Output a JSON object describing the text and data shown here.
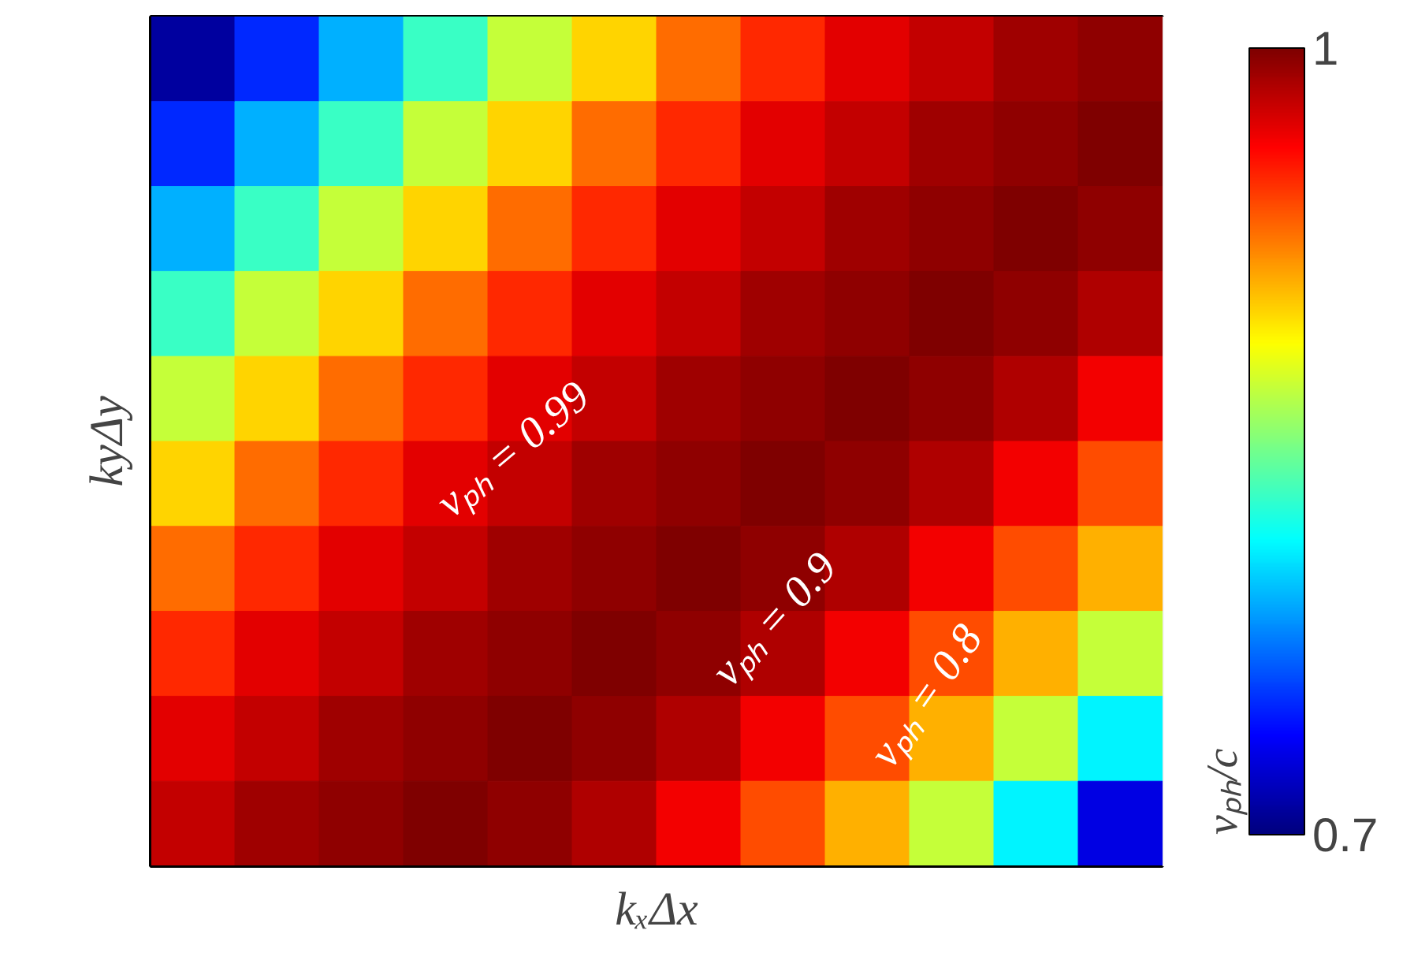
{
  "chart_data": {
    "type": "heatmap",
    "xlabel": "kₓΔx",
    "ylabel": "kyΔy",
    "clabel": "vₚₕ/c",
    "categories": [
      null,
      null,
      null,
      null,
      null,
      null,
      null,
      null,
      null,
      null,
      null,
      null
    ],
    "y_categories": [
      null,
      null,
      null,
      null,
      null,
      null,
      null,
      null,
      null,
      null
    ],
    "cells": [
      [
        0.71,
        0.75,
        0.79,
        0.83,
        0.87,
        0.9,
        0.93,
        0.95,
        0.97,
        0.98,
        0.99,
        0.995
      ],
      [
        0.75,
        0.79,
        0.83,
        0.87,
        0.9,
        0.93,
        0.95,
        0.97,
        0.98,
        0.99,
        0.995,
        1.0
      ],
      [
        0.79,
        0.83,
        0.87,
        0.9,
        0.93,
        0.95,
        0.97,
        0.98,
        0.99,
        0.995,
        1.0,
        0.995
      ],
      [
        0.83,
        0.87,
        0.9,
        0.93,
        0.95,
        0.97,
        0.98,
        0.99,
        0.995,
        1.0,
        0.995,
        0.985
      ],
      [
        0.87,
        0.9,
        0.93,
        0.95,
        0.97,
        0.98,
        0.99,
        0.995,
        1.0,
        0.995,
        0.985,
        0.965
      ],
      [
        0.9,
        0.93,
        0.95,
        0.97,
        0.98,
        0.99,
        0.995,
        1.0,
        0.995,
        0.985,
        0.965,
        0.94
      ],
      [
        0.93,
        0.95,
        0.97,
        0.98,
        0.99,
        0.995,
        1.0,
        0.995,
        0.985,
        0.965,
        0.94,
        0.91
      ],
      [
        0.95,
        0.97,
        0.98,
        0.99,
        0.995,
        1.0,
        0.995,
        0.985,
        0.965,
        0.94,
        0.91,
        0.87
      ],
      [
        0.97,
        0.98,
        0.99,
        0.995,
        1.0,
        0.995,
        0.985,
        0.965,
        0.94,
        0.91,
        0.87,
        0.81
      ],
      [
        0.98,
        0.99,
        0.995,
        1.0,
        0.995,
        0.985,
        0.965,
        0.94,
        0.91,
        0.87,
        0.81,
        0.73
      ]
    ],
    "clim": [
      0.7,
      1
    ],
    "cticks": [
      0.7,
      1
    ],
    "annotations": [
      "vₚₕ = 0.99",
      "vₚₕ = 0.9",
      "vₚₕ = 0.8"
    ]
  }
}
